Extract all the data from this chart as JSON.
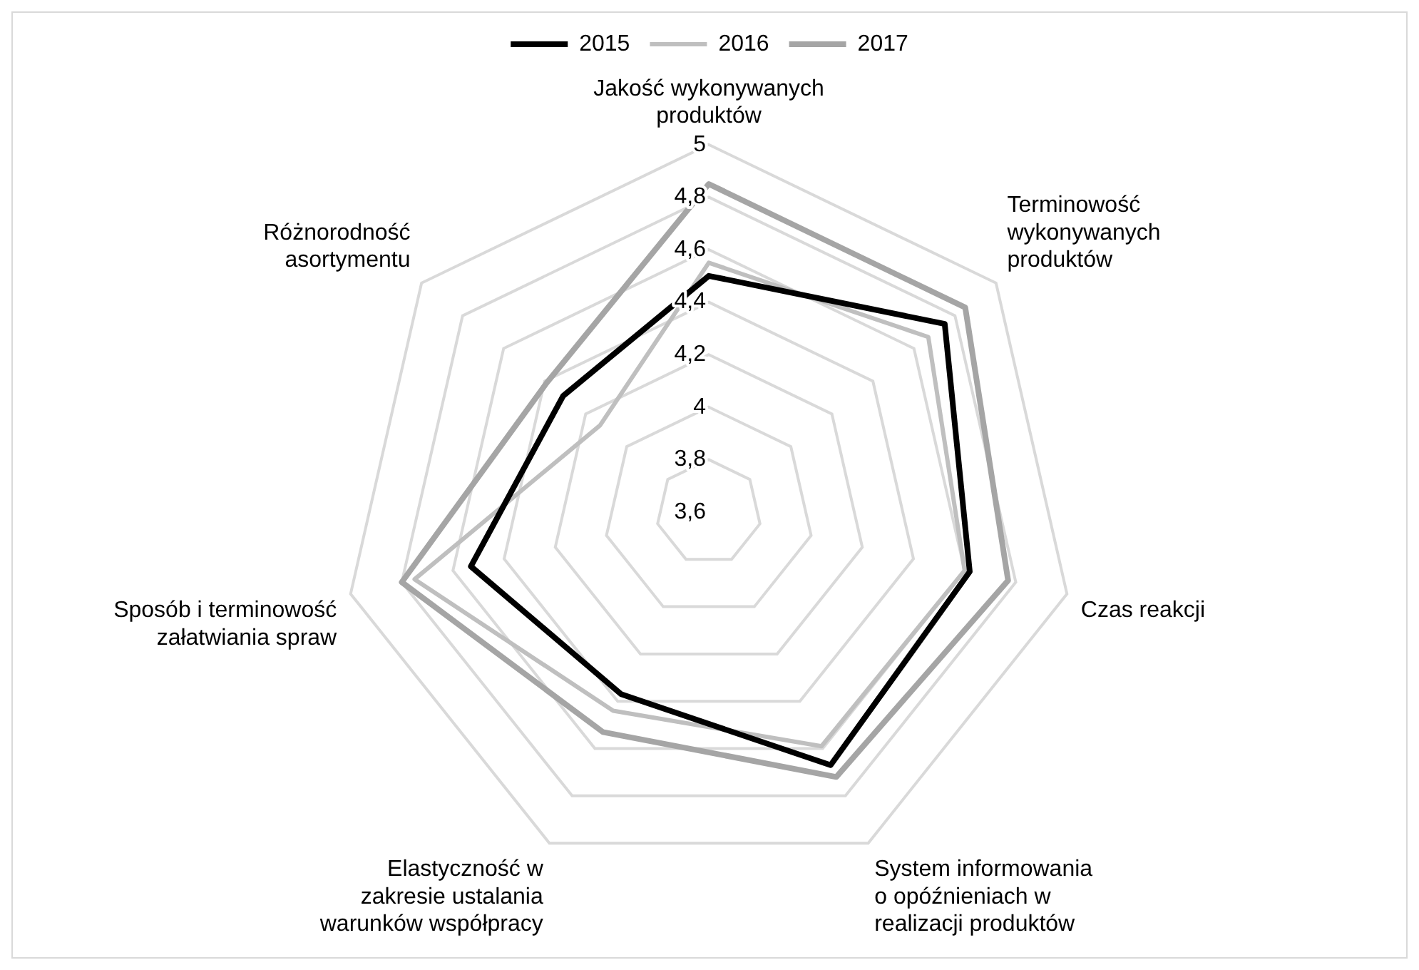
{
  "chart_data": {
    "type": "radar",
    "categories": [
      "Jakość wykonywanych produktów",
      "Terminowość wykonywanych produktów",
      "Czas reakcji",
      "System informowania o opóźnieniach w realizacji produktów",
      "Elastyczność w zakresie ustalania warunków współpracy",
      "Sposób i terminowość załatwiania spraw",
      "Różnorodność asortymentu"
    ],
    "series": [
      {
        "name": "2015",
        "color": "#000000",
        "values": [
          4.5,
          4.75,
          4.62,
          4.67,
          4.37,
          4.53,
          4.31
        ]
      },
      {
        "name": "2016",
        "color": "#bfbfbf",
        "values": [
          4.55,
          4.67,
          4.6,
          4.59,
          4.44,
          4.75,
          4.13
        ]
      },
      {
        "name": "2017",
        "color": "#a5a5a5",
        "values": [
          4.85,
          4.85,
          4.77,
          4.72,
          4.53,
          4.8,
          4.39
        ]
      }
    ],
    "ylim": [
      3.6,
      5
    ],
    "yticks": [
      {
        "value": 3.6,
        "label": "3,6"
      },
      {
        "value": 3.8,
        "label": "3,8"
      },
      {
        "value": 4,
        "label": "4"
      },
      {
        "value": 4.2,
        "label": "4,2"
      },
      {
        "value": 4.4,
        "label": "4,4"
      },
      {
        "value": 4.6,
        "label": "4,6"
      },
      {
        "value": 4.8,
        "label": "4,8"
      },
      {
        "value": 5,
        "label": "5"
      }
    ],
    "grid": true,
    "legend": "top",
    "marker": "none",
    "line_style": "solid"
  }
}
